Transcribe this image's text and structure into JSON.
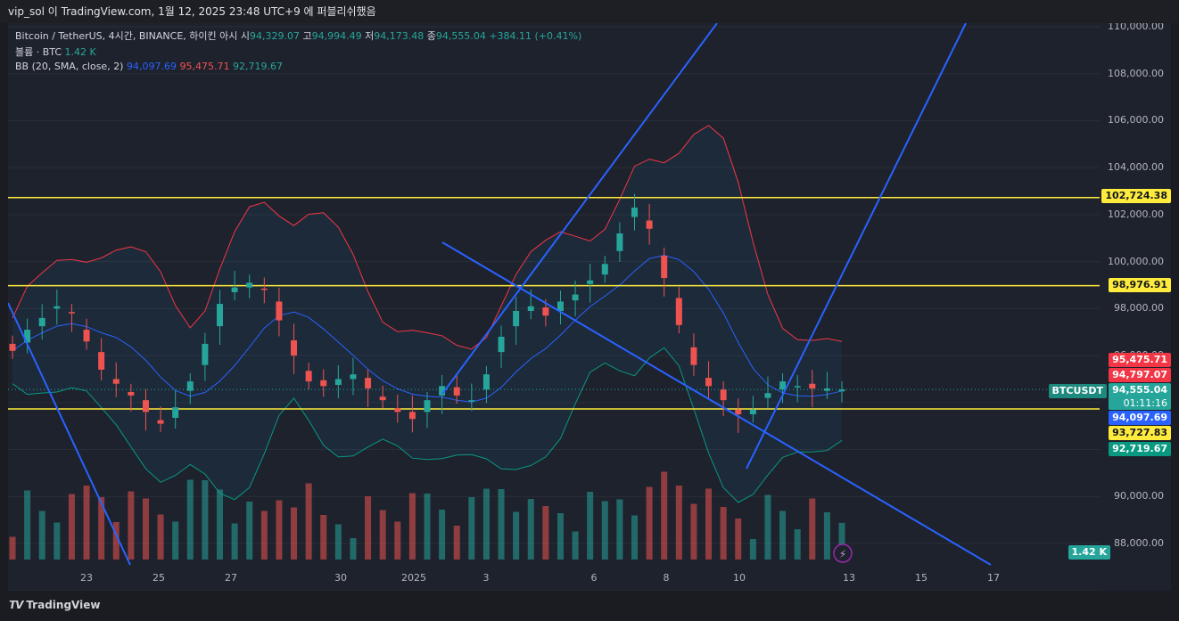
{
  "header": {
    "text": "vip_sol 이 TradingView.com, 1월 12, 2025 23:48 UTC+9 에 퍼블리쉬했음"
  },
  "legend": {
    "symbol": "Bitcoin / TetherUS, 4시간, BINANCE, 하이킨 아시",
    "open_label": "시",
    "open": "94,329.07",
    "high_label": "고",
    "high": "94,994.49",
    "low_label": "저",
    "low": "94,173.48",
    "close_label": "종",
    "close": "94,555.04",
    "change": "+384.11 (+0.41%)",
    "volume_label": "볼륨 · BTC",
    "volume": "1.42 K",
    "bb_label": "BB (20, SMA, close, 2)",
    "bb_basis": "94,097.69",
    "bb_upper": "95,475.71",
    "bb_lower": "92,719.67"
  },
  "price_axis": [
    "110,000.00",
    "108,000.00",
    "106,000.00",
    "104,000.00",
    "102,000.00",
    "100,000.00",
    "98,000.00",
    "96,000.00",
    "94,000.00",
    "92,000.00",
    "90,000.00",
    "88,000.00"
  ],
  "time_axis": [
    "23",
    "25",
    "27",
    "30",
    "2025",
    "3",
    "6",
    "8",
    "10",
    "13",
    "15",
    "17"
  ],
  "price_tags": {
    "level_high": "102,724.38",
    "level_mid": "98,976.91",
    "bb_upper": "95,475.71",
    "prev": "94,797.07",
    "symbol": "BTCUSDT",
    "last": "94,555.04",
    "countdown": "01:11:16",
    "bb_basis": "94,097.69",
    "level_low": "93,727.83",
    "bb_lower": "92,719.67",
    "volume": "1.42 K"
  },
  "footer": {
    "brand": "TradingView"
  },
  "colors": {
    "up": "#26a69a",
    "down": "#ef5350",
    "bb_basis": "#2962ff",
    "bb_upper": "#f23645",
    "bb_lower": "#089981",
    "hline": "#ffeb3b",
    "trendline": "#2962ff"
  },
  "chart_data": {
    "type": "candlestick",
    "symbol": "BTCUSDT",
    "interval": "4h",
    "chart_style": "Heikin Ashi",
    "ylim": [
      87500,
      110300
    ],
    "horizontal_levels": [
      102724.38,
      98976.91,
      93727.83
    ],
    "last_close": 94555.04,
    "bollinger_last": {
      "basis": 94097.69,
      "upper": 95475.71,
      "lower": 92719.67
    },
    "candles_close_approx": [
      96200,
      97100,
      97600,
      98100,
      97800,
      96600,
      95400,
      94800,
      94300,
      93600,
      93100,
      93800,
      94900,
      96500,
      98200,
      98900,
      99100,
      98800,
      97500,
      96000,
      94900,
      94700,
      95000,
      95200,
      94600,
      94100,
      93600,
      93300,
      94100,
      94700,
      94300,
      94100,
      95200,
      96800,
      97900,
      98100,
      97700,
      98300,
      98600,
      99200,
      99900,
      101200,
      102300,
      101400,
      99300,
      97300,
      95600,
      94700,
      94100,
      93500,
      93700,
      94400,
      94900,
      94700,
      94600,
      94600,
      94555.04
    ]
  }
}
